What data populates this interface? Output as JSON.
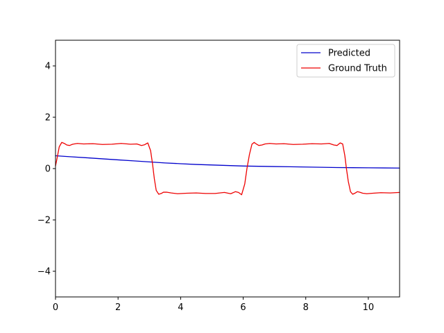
{
  "chart_data": {
    "type": "line",
    "title": "",
    "xlabel": "",
    "ylabel": "",
    "xlim": [
      0,
      11
    ],
    "ylim": [
      -5,
      5
    ],
    "xticks": [
      0,
      2,
      4,
      6,
      8,
      10
    ],
    "yticks": [
      -4,
      -2,
      0,
      2,
      4
    ],
    "xtick_labels": [
      "0",
      "2",
      "4",
      "6",
      "8",
      "10"
    ],
    "ytick_labels": [
      "−4",
      "−2",
      "0",
      "2",
      "4"
    ],
    "grid": false,
    "legend": "top-right",
    "series": [
      {
        "name": "Predicted",
        "color": "#0000cc",
        "x": [
          0,
          0.5,
          1,
          1.5,
          2,
          2.5,
          3,
          3.5,
          4,
          4.5,
          5,
          5.5,
          6,
          6.5,
          7,
          7.5,
          8,
          8.5,
          9,
          9.5,
          10,
          10.5,
          11
        ],
        "y": [
          0.5,
          0.46,
          0.42,
          0.38,
          0.34,
          0.3,
          0.26,
          0.22,
          0.19,
          0.16,
          0.14,
          0.12,
          0.1,
          0.09,
          0.08,
          0.07,
          0.06,
          0.05,
          0.04,
          0.035,
          0.03,
          0.025,
          0.02
        ]
      },
      {
        "name": "Ground Truth",
        "color": "#ee0000",
        "x": [
          0,
          0.05,
          0.12,
          0.2,
          0.28,
          0.36,
          0.45,
          0.55,
          0.7,
          0.9,
          1.2,
          1.5,
          1.8,
          2.1,
          2.4,
          2.6,
          2.75,
          2.85,
          2.95,
          3.04,
          3.1,
          3.16,
          3.22,
          3.3,
          3.38,
          3.45,
          3.55,
          3.7,
          3.9,
          4.2,
          4.5,
          4.8,
          5.1,
          5.4,
          5.6,
          5.75,
          5.85,
          5.95,
          6.05,
          6.12,
          6.2,
          6.28,
          6.35,
          6.43,
          6.5,
          6.6,
          6.7,
          6.85,
          7.05,
          7.3,
          7.6,
          7.9,
          8.2,
          8.5,
          8.75,
          8.9,
          9.0,
          9.1,
          9.18,
          9.25,
          9.3,
          9.36,
          9.43,
          9.5,
          9.57,
          9.65,
          9.72,
          9.82,
          9.95,
          10.15,
          10.4,
          10.7,
          11.0
        ],
        "y": [
          0.1,
          0.4,
          0.85,
          1.02,
          0.98,
          0.92,
          0.9,
          0.95,
          0.98,
          0.96,
          0.97,
          0.94,
          0.95,
          0.98,
          0.95,
          0.96,
          0.9,
          0.93,
          1.0,
          0.7,
          0.2,
          -0.4,
          -0.85,
          -1.0,
          -0.97,
          -0.92,
          -0.92,
          -0.95,
          -0.98,
          -0.96,
          -0.95,
          -0.97,
          -0.97,
          -0.93,
          -0.98,
          -0.9,
          -0.93,
          -1.02,
          -0.6,
          0.0,
          0.55,
          0.95,
          1.02,
          0.95,
          0.9,
          0.92,
          0.96,
          0.98,
          0.96,
          0.97,
          0.94,
          0.95,
          0.97,
          0.96,
          0.98,
          0.92,
          0.9,
          1.0,
          0.96,
          0.5,
          0.0,
          -0.5,
          -0.9,
          -1.0,
          -0.96,
          -0.9,
          -0.92,
          -0.96,
          -0.98,
          -0.96,
          -0.94,
          -0.95,
          -0.93
        ]
      }
    ]
  }
}
